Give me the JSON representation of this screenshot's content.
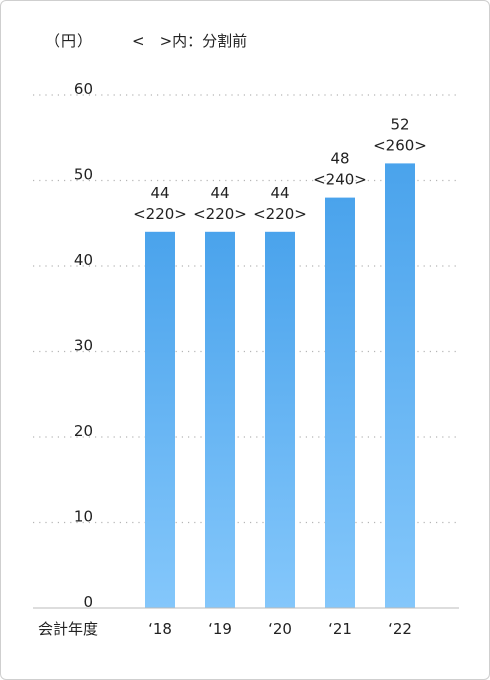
{
  "chart_data": {
    "type": "bar",
    "unit_label": "（円）",
    "note_label": "<　>内：分割前",
    "xlabel": "会計年度",
    "categories": [
      "‘18",
      "‘19",
      "‘20",
      "‘21",
      "‘22"
    ],
    "values": [
      44,
      44,
      44,
      48,
      52
    ],
    "pre_split_values": [
      "<220>",
      "<220>",
      "<220>",
      "<240>",
      "<260>"
    ],
    "ylim": [
      0,
      60
    ],
    "yticks": [
      0,
      10,
      20,
      30,
      40,
      50,
      60
    ],
    "grid": true,
    "bar_color_top": "#4aa3ec",
    "bar_color_bottom": "#84c7fb"
  }
}
